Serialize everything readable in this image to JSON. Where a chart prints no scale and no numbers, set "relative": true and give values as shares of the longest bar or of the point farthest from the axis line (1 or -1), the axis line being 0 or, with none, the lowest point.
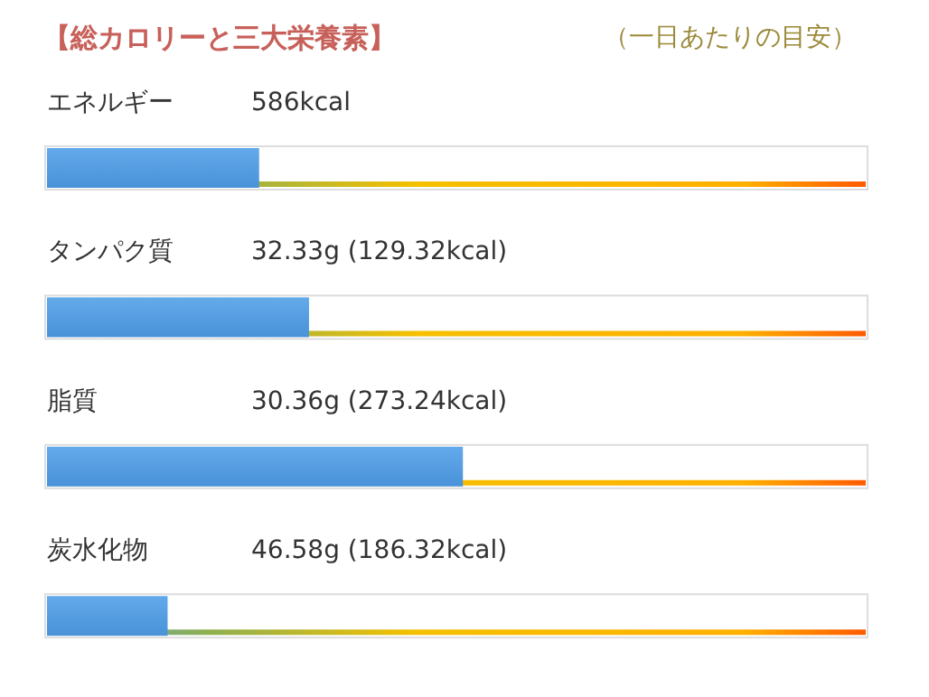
{
  "chart_data": {
    "type": "bar",
    "orientation": "horizontal",
    "relative": true,
    "title": "【総カロリーと三大栄養素】",
    "subtitle": "（一日あたりの目安）",
    "categories": [
      "エネルギー",
      "タンパク質",
      "脂質",
      "炭水化物"
    ],
    "values": [
      0.51,
      0.63,
      1,
      0.29
    ],
    "annotations": [
      "586kcal",
      "32.33g (129.32kcal)",
      "30.36g (273.24kcal)",
      "46.58g (186.32kcal)"
    ],
    "color": "#4a92d8"
  }
}
